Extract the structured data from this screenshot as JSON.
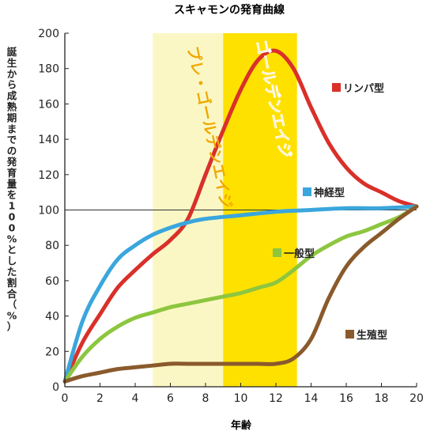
{
  "chart_data": {
    "type": "line",
    "title": "スキャモンの発育曲線",
    "xlabel": "年齢",
    "ylabel": "誕生から成熟期までの発育量を100%とした割合（%）",
    "xlim": [
      0,
      20
    ],
    "ylim": [
      0,
      200
    ],
    "x_ticks": [
      "0",
      "2",
      "4",
      "6",
      "8",
      "10",
      "12",
      "14",
      "16",
      "18",
      "20"
    ],
    "y_ticks": [
      "0",
      "20",
      "40",
      "60",
      "80",
      "100",
      "120",
      "140",
      "160",
      "180",
      "200"
    ],
    "reference_line": 100,
    "bands": [
      {
        "label": "プレ・ゴールデンエイジ",
        "from": 5,
        "to": 9,
        "color": "#fbf7c4"
      },
      {
        "label": "ゴールデンエイジ",
        "from": 9,
        "to": 13.2,
        "color": "#ffe100"
      }
    ],
    "series": [
      {
        "name": "リンパ型",
        "color": "#d9302a",
        "points": [
          [
            0,
            3
          ],
          [
            1,
            25
          ],
          [
            2,
            41
          ],
          [
            3,
            56
          ],
          [
            4,
            66
          ],
          [
            5,
            75
          ],
          [
            6,
            83
          ],
          [
            7,
            95
          ],
          [
            8,
            120
          ],
          [
            9,
            145
          ],
          [
            10,
            168
          ],
          [
            11,
            185
          ],
          [
            12,
            190
          ],
          [
            13,
            180
          ],
          [
            14,
            158
          ],
          [
            15,
            138
          ],
          [
            16,
            124
          ],
          [
            17,
            115
          ],
          [
            18,
            110
          ],
          [
            19,
            105
          ],
          [
            20,
            102
          ]
        ]
      },
      {
        "name": "神経型",
        "color": "#3aa6dd",
        "points": [
          [
            0,
            3
          ],
          [
            1,
            37
          ],
          [
            2,
            57
          ],
          [
            3,
            72
          ],
          [
            4,
            80
          ],
          [
            5,
            86
          ],
          [
            6,
            90
          ],
          [
            7,
            93
          ],
          [
            8,
            95
          ],
          [
            10,
            97
          ],
          [
            12,
            99
          ],
          [
            14,
            100
          ],
          [
            16,
            101
          ],
          [
            18,
            101
          ],
          [
            20,
            102
          ]
        ]
      },
      {
        "name": "一般型",
        "color": "#8dc63f",
        "points": [
          [
            0,
            3
          ],
          [
            1,
            17
          ],
          [
            2,
            27
          ],
          [
            3,
            34
          ],
          [
            4,
            39
          ],
          [
            5,
            42
          ],
          [
            6,
            45
          ],
          [
            7,
            47
          ],
          [
            8,
            49
          ],
          [
            9,
            51
          ],
          [
            10,
            53
          ],
          [
            11,
            56
          ],
          [
            12,
            59
          ],
          [
            13,
            66
          ],
          [
            14,
            74
          ],
          [
            15,
            80
          ],
          [
            16,
            85
          ],
          [
            17,
            88
          ],
          [
            18,
            92
          ],
          [
            19,
            96
          ],
          [
            20,
            102
          ]
        ]
      },
      {
        "name": "生殖型",
        "color": "#8a5a2c",
        "points": [
          [
            0,
            3
          ],
          [
            1,
            6
          ],
          [
            2,
            8
          ],
          [
            3,
            10
          ],
          [
            4,
            11
          ],
          [
            5,
            12
          ],
          [
            6,
            13
          ],
          [
            7,
            13
          ],
          [
            8,
            13
          ],
          [
            9,
            13
          ],
          [
            10,
            13
          ],
          [
            11,
            13
          ],
          [
            12,
            13
          ],
          [
            13,
            16
          ],
          [
            14,
            27
          ],
          [
            15,
            50
          ],
          [
            16,
            68
          ],
          [
            17,
            79
          ],
          [
            18,
            87
          ],
          [
            19,
            95
          ],
          [
            20,
            102
          ]
        ]
      }
    ]
  }
}
